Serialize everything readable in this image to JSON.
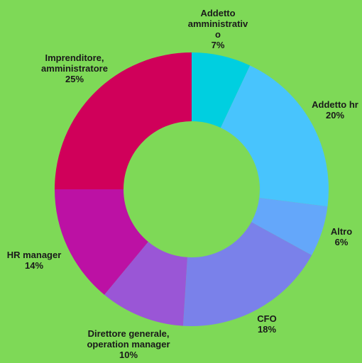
{
  "colors": {
    "background": "#7ed957",
    "label_text": "#1a1a1a"
  },
  "chart_data": {
    "type": "pie",
    "variant": "donut",
    "slices": [
      {
        "label_lines": [
          "Addetto",
          "amministrativ",
          "o"
        ],
        "value": 7,
        "value_text": "7%",
        "color": "#00cfe0"
      },
      {
        "label_lines": [
          "Addetto hr"
        ],
        "value": 20,
        "value_text": "20%",
        "color": "#48c4fd"
      },
      {
        "label_lines": [
          "Altro"
        ],
        "value": 6,
        "value_text": "6%",
        "color": "#64a7fa"
      },
      {
        "label_lines": [
          "CFO"
        ],
        "value": 18,
        "value_text": "18%",
        "color": "#7a81ea"
      },
      {
        "label_lines": [
          "Direttore generale,",
          "operation manager"
        ],
        "value": 10,
        "value_text": "10%",
        "color": "#9a56d6"
      },
      {
        "label_lines": [
          "HR manager"
        ],
        "value": 14,
        "value_text": "14%",
        "color": "#bc11a4"
      },
      {
        "label_lines": [
          "Imprenditore,",
          "amministratore"
        ],
        "value": 25,
        "value_text": "25%",
        "color": "#d0005a"
      }
    ],
    "legend": "none",
    "start_angle": "12 o'clock",
    "direction": "clockwise"
  }
}
